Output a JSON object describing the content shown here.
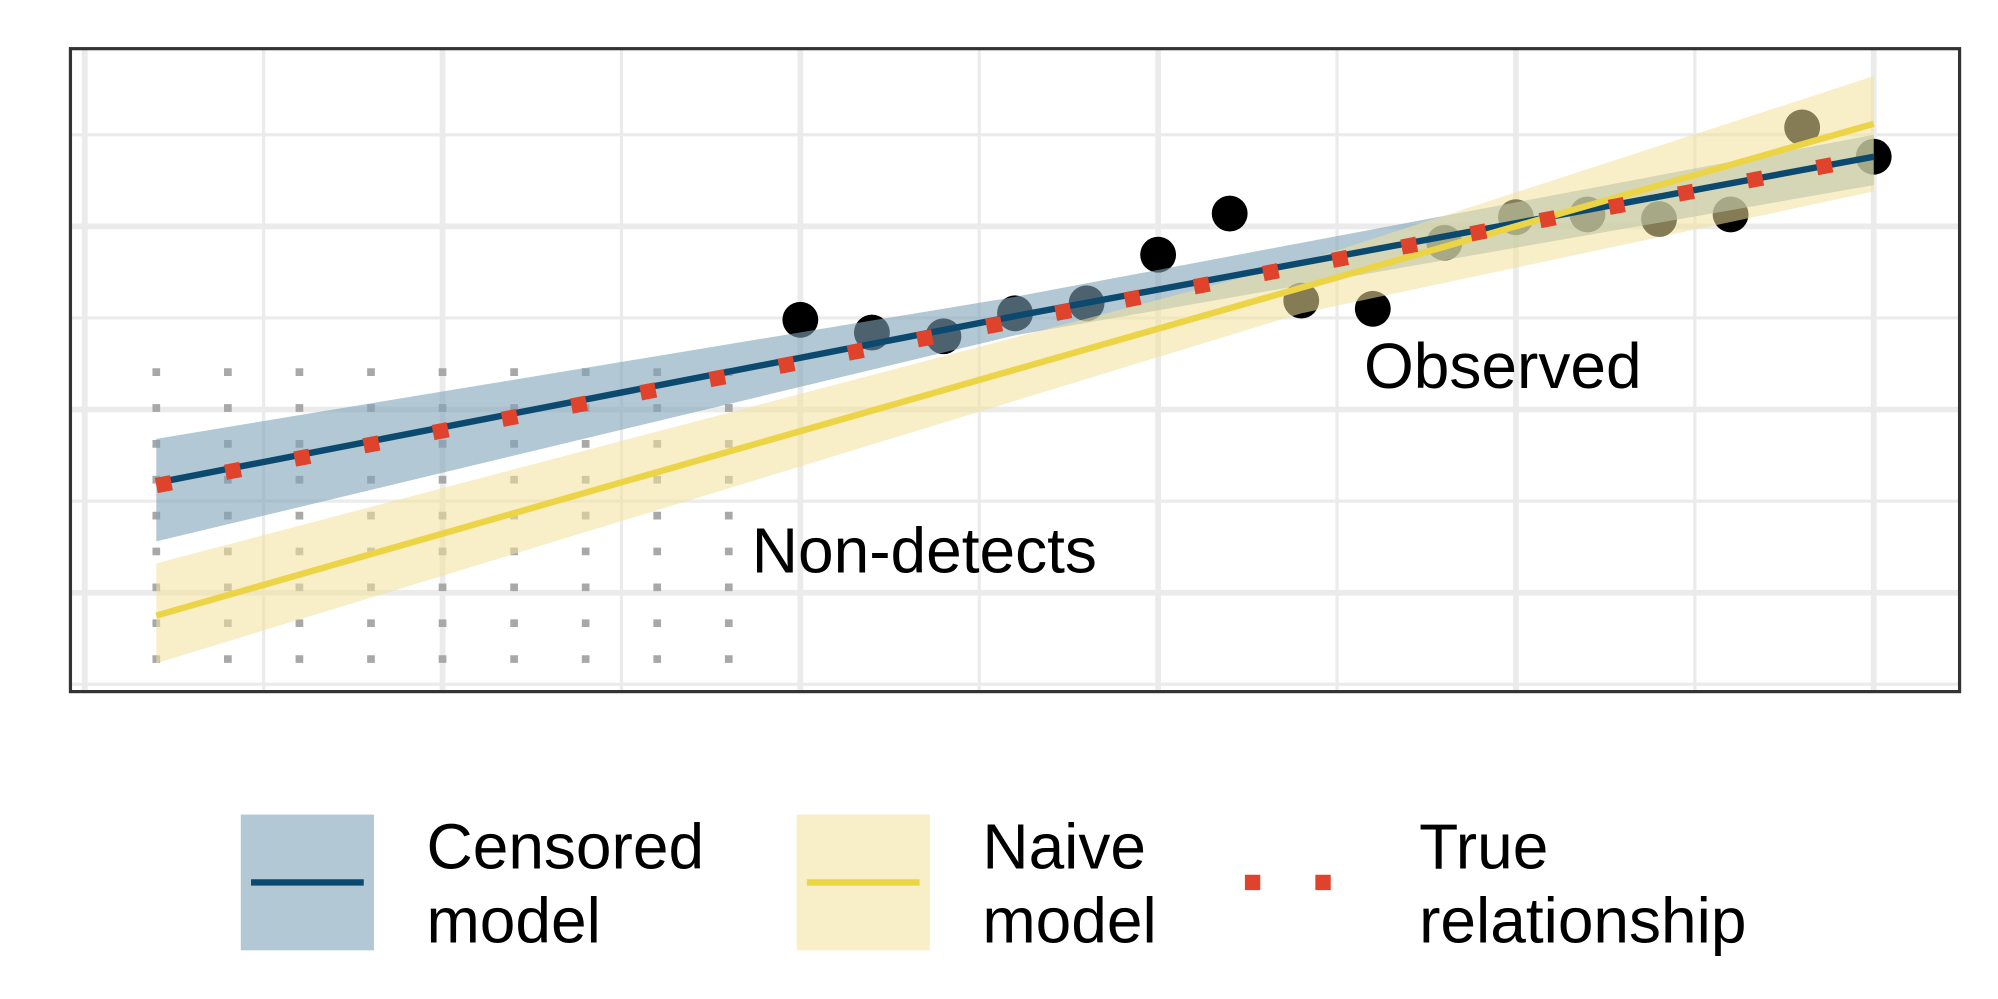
{
  "chart_data": {
    "type": "line",
    "xlim": [
      -0.2,
      26.2
    ],
    "ylim": [
      -1.08,
      5.94
    ],
    "xticks": [
      0,
      5,
      10,
      15,
      20,
      25
    ],
    "minor_xticks": [
      2.5,
      7.5,
      12.5,
      17.5,
      22.5
    ],
    "yticks": [
      0,
      2,
      4
    ],
    "minor_yticks": [
      -1,
      1,
      3,
      5
    ],
    "grid": true,
    "annotations": [
      "Observed",
      "Non-detects"
    ],
    "observed": {
      "color": "#000000",
      "x": [
        10,
        11,
        12,
        13,
        14,
        15,
        16,
        17,
        18,
        19,
        20,
        21,
        22,
        23,
        24,
        25
      ],
      "y": [
        2.98,
        2.84,
        2.8,
        3.05,
        3.16,
        3.69,
        4.14,
        3.19,
        3.1,
        3.82,
        4.1,
        4.13,
        4.08,
        4.13,
        5.08,
        4.76
      ]
    },
    "non_detects": {
      "color": "#a8a8a8",
      "x": [
        1,
        2,
        3,
        4,
        5,
        6,
        7,
        8,
        9
      ],
      "detection_limit": [
        2.45,
        2.45,
        2.45,
        2.45,
        2.45,
        2.45,
        2.45,
        2.45,
        2.45
      ]
    },
    "series": [
      {
        "name": "Censored model",
        "color": "#0b4a6e",
        "band_color": "#7fa3b8",
        "x": [
          1,
          13,
          25
        ],
        "values": [
          1.2,
          3.02,
          4.76
        ],
        "lower": [
          0.56,
          2.81,
          4.45
        ],
        "upper": [
          1.68,
          3.23,
          5.0
        ]
      },
      {
        "name": "Naive model",
        "color": "#ecd447",
        "band_color": "#f3e29a",
        "x": [
          1,
          17,
          25
        ],
        "values": [
          -0.25,
          3.33,
          5.12
        ],
        "lower": [
          -0.77,
          3.05,
          4.38
        ],
        "upper": [
          0.32,
          3.61,
          5.64
        ]
      },
      {
        "name": "True relationship",
        "color": "#e0432b",
        "style": "dotted",
        "x": [
          1,
          25
        ],
        "values": [
          1.17,
          4.76
        ]
      }
    ],
    "legend": "bottom"
  }
}
